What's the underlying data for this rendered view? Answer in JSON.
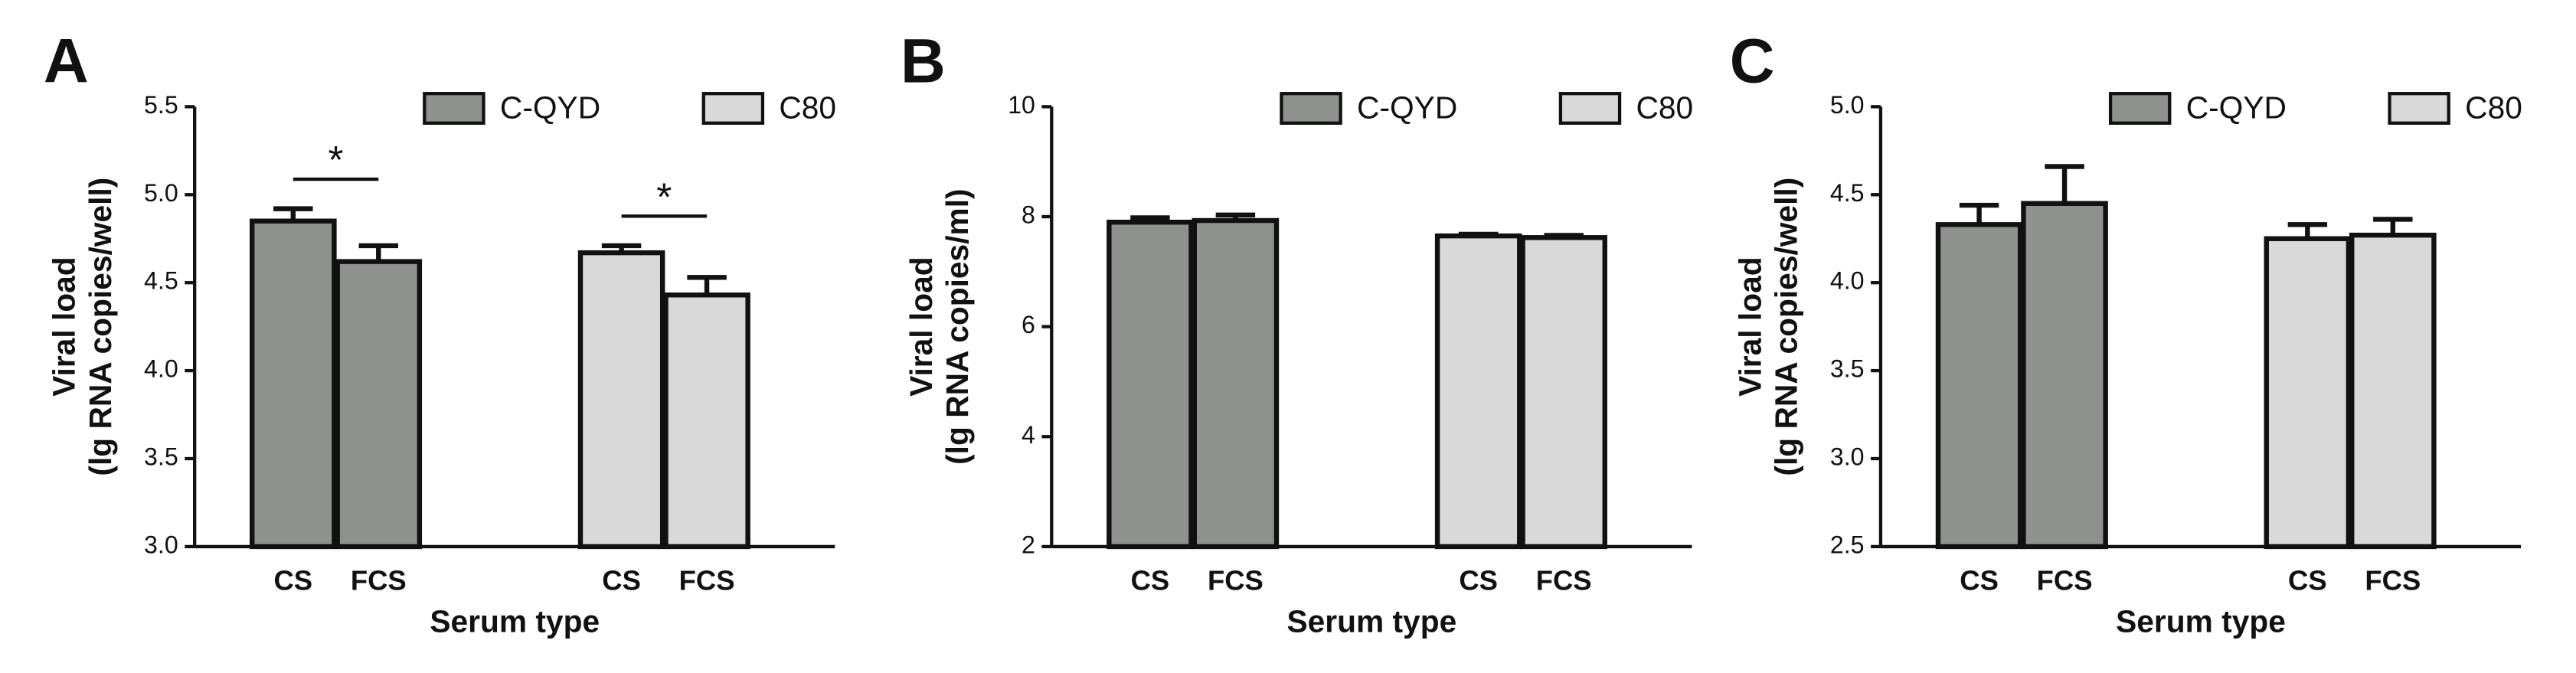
{
  "chart_data": [
    {
      "type": "bar",
      "panel_label": "A",
      "x_label": "Serum type",
      "y_label": [
        "Viral load",
        "(lg RNA copies/well)"
      ],
      "categories": [
        "CS",
        "FCS"
      ],
      "series": [
        {
          "name": "C-QYD",
          "color": "#8f918f",
          "values": [
            4.85,
            4.62
          ],
          "errors": [
            0.07,
            0.09
          ]
        },
        {
          "name": "C80",
          "color": "#d9d9d9",
          "values": [
            4.67,
            4.43
          ],
          "errors": [
            0.04,
            0.1
          ]
        }
      ],
      "annotations": [
        "*",
        "*"
      ],
      "ylim": [
        3.0,
        5.5
      ],
      "yticks": [
        {
          "value": 3,
          "label": "3.0"
        },
        {
          "value": 3.5,
          "label": "3.5"
        },
        {
          "value": 4,
          "label": "4.0"
        },
        {
          "value": 4.5,
          "label": "4.5"
        },
        {
          "value": 5,
          "label": "5.0"
        },
        {
          "value": 5.5,
          "label": "5.5"
        }
      ]
    },
    {
      "type": "bar",
      "panel_label": "B",
      "x_label": "Serum type",
      "y_label": [
        "Viral load",
        "(lg RNA copies/ml)"
      ],
      "categories": [
        "CS",
        "FCS"
      ],
      "series": [
        {
          "name": "C-QYD",
          "color": "#8f918f",
          "values": [
            7.9,
            7.93
          ],
          "errors": [
            0.08,
            0.1
          ]
        },
        {
          "name": "C80",
          "color": "#d9d9d9",
          "values": [
            7.65,
            7.62
          ],
          "errors": [
            0.03,
            0.04
          ]
        }
      ],
      "ylim": [
        2,
        10
      ],
      "yticks": [
        2,
        4,
        6,
        8,
        10
      ]
    },
    {
      "type": "bar",
      "panel_label": "C",
      "x_label": "Serum type",
      "y_label": [
        "Viral load",
        "(lg RNA copies/well)"
      ],
      "categories": [
        "CS",
        "FCS"
      ],
      "series": [
        {
          "name": "C-QYD",
          "color": "#8f918f",
          "values": [
            4.33,
            4.45
          ],
          "errors": [
            0.11,
            0.21
          ]
        },
        {
          "name": "C80",
          "color": "#d9d9d9",
          "values": [
            4.25,
            4.27
          ],
          "errors": [
            0.08,
            0.09
          ]
        }
      ],
      "ylim": [
        2.5,
        5.0
      ],
      "yticks": [
        {
          "value": 2.5,
          "label": "2.5"
        },
        {
          "value": 3,
          "label": "3.0"
        },
        {
          "value": 3.5,
          "label": "3.5"
        },
        {
          "value": 4,
          "label": "4.0"
        },
        {
          "value": 4.5,
          "label": "4.5"
        },
        {
          "value": 5,
          "label": "5.0"
        }
      ]
    }
  ]
}
